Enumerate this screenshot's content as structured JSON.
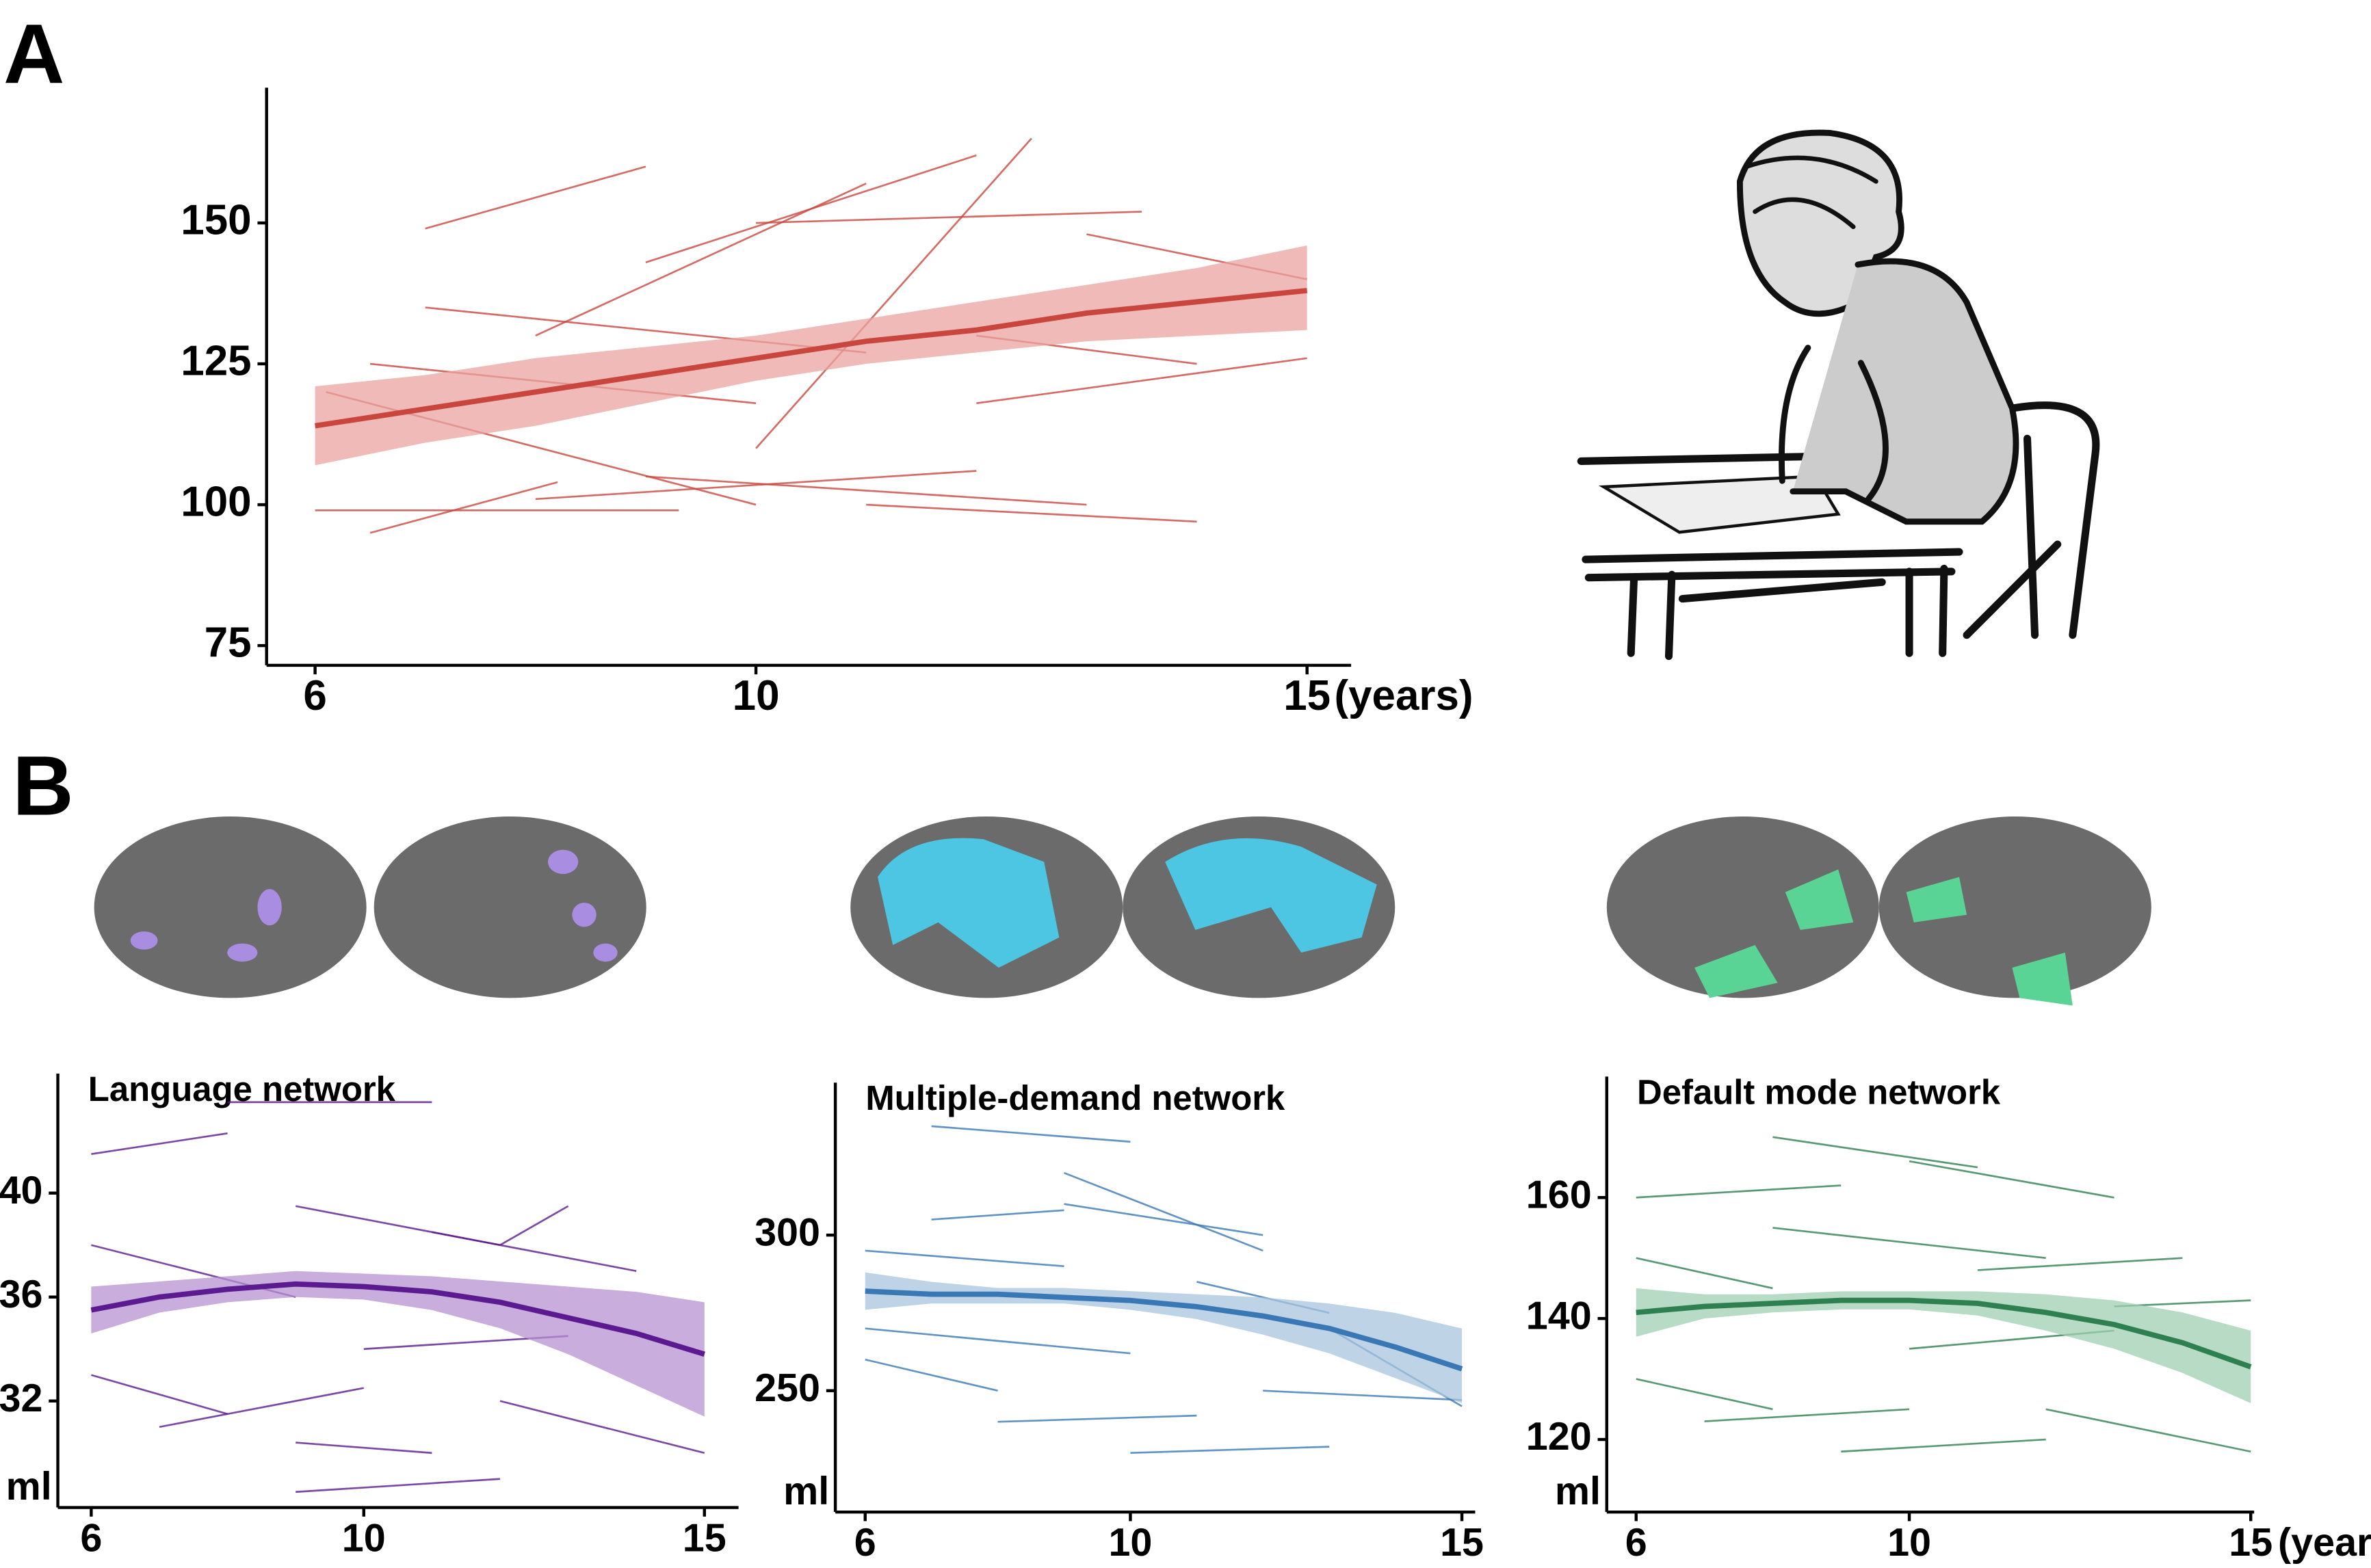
{
  "panels": [
    {
      "label": "A"
    },
    {
      "label": "B"
    }
  ],
  "chart_data": [
    {
      "type": "line",
      "x_label": "(years)",
      "color": "#c9463f",
      "ribbon_color": "#e9a3a0",
      "xlim": [
        5.56,
        15.4
      ],
      "ylim": [
        71.5,
        174
      ],
      "xticks": [
        6,
        10,
        15
      ],
      "yticks": [
        75,
        100,
        125,
        150
      ],
      "fit": {
        "x": [
          6,
          7,
          8,
          9,
          10,
          11,
          12,
          13,
          14,
          15
        ],
        "values": [
          114,
          117,
          120,
          123,
          126,
          129,
          131,
          134,
          136,
          138
        ],
        "lower": [
          107,
          111,
          114,
          118,
          122,
          125,
          127,
          129,
          130,
          131
        ],
        "upper": [
          121,
          123,
          126,
          128,
          130,
          133,
          136,
          139,
          142,
          146
        ]
      },
      "series": [
        {
          "x": [
            6,
            9.3
          ],
          "values": [
            99,
            99
          ]
        },
        {
          "x": [
            6.5,
            8.2
          ],
          "values": [
            95,
            104
          ]
        },
        {
          "x": [
            7,
            9
          ],
          "values": [
            149,
            160
          ]
        },
        {
          "x": [
            6.1,
            10
          ],
          "values": [
            120,
            100
          ]
        },
        {
          "x": [
            8,
            12
          ],
          "values": [
            101,
            106
          ]
        },
        {
          "x": [
            9,
            12
          ],
          "values": [
            143,
            162
          ]
        },
        {
          "x": [
            10,
            13.5
          ],
          "values": [
            150,
            152
          ]
        },
        {
          "x": [
            12,
            15
          ],
          "values": [
            118,
            126
          ]
        },
        {
          "x": [
            11,
            14
          ],
          "values": [
            100,
            97
          ]
        },
        {
          "x": [
            8,
            11
          ],
          "values": [
            130,
            157
          ]
        },
        {
          "x": [
            7,
            11
          ],
          "values": [
            135,
            127
          ]
        },
        {
          "x": [
            12,
            14
          ],
          "values": [
            130,
            125
          ]
        },
        {
          "x": [
            13,
            15
          ],
          "values": [
            148,
            140
          ]
        },
        {
          "x": [
            9,
            13
          ],
          "values": [
            105,
            100
          ]
        },
        {
          "x": [
            10,
            12.5
          ],
          "values": [
            110,
            165
          ]
        },
        {
          "x": [
            6.5,
            10
          ],
          "values": [
            125,
            118
          ]
        }
      ]
    },
    {
      "type": "line",
      "title": "Language network",
      "y_label": "ml",
      "color": "#5b1a8f",
      "ribbon_color": "#b592d2",
      "xlim": [
        5.51,
        15.5
      ],
      "ylim": [
        27.9,
        44.6
      ],
      "xticks": [
        6,
        10,
        15
      ],
      "yticks": [
        32,
        36,
        40
      ],
      "fit": {
        "x": [
          6,
          7,
          8,
          9,
          10,
          11,
          12,
          13,
          14,
          15
        ],
        "values": [
          35.5,
          36,
          36.3,
          36.5,
          36.4,
          36.2,
          35.8,
          35.2,
          34.6,
          33.8
        ],
        "lower": [
          34.6,
          35.4,
          35.8,
          36,
          35.9,
          35.5,
          34.8,
          33.8,
          32.6,
          31.4
        ],
        "upper": [
          36.4,
          36.6,
          36.8,
          37,
          36.9,
          36.8,
          36.6,
          36.4,
          36.2,
          35.8
        ]
      },
      "series": [
        {
          "x": [
            6,
            8
          ],
          "values": [
            41.5,
            42.3
          ]
        },
        {
          "x": [
            8,
            11
          ],
          "values": [
            43.5,
            43.5
          ]
        },
        {
          "x": [
            9,
            12
          ],
          "values": [
            39.5,
            38
          ]
        },
        {
          "x": [
            6,
            9
          ],
          "values": [
            38,
            36
          ]
        },
        {
          "x": [
            7,
            10
          ],
          "values": [
            31,
            32.5
          ]
        },
        {
          "x": [
            9,
            11
          ],
          "values": [
            30.4,
            30
          ]
        },
        {
          "x": [
            12,
            15
          ],
          "values": [
            32,
            30
          ]
        },
        {
          "x": [
            10,
            13
          ],
          "values": [
            34,
            34.5
          ]
        },
        {
          "x": [
            11,
            14
          ],
          "values": [
            38.5,
            37
          ]
        },
        {
          "x": [
            6,
            8
          ],
          "values": [
            33,
            31.5
          ]
        },
        {
          "x": [
            12,
            13
          ],
          "values": [
            38,
            39.5
          ]
        },
        {
          "x": [
            9,
            12
          ],
          "values": [
            28.5,
            29
          ]
        }
      ]
    },
    {
      "type": "line",
      "title": "Multiple-demand network",
      "y_label": "ml",
      "color": "#3a78b5",
      "ribbon_color": "#a8c4de",
      "xlim": [
        5.55,
        15.2
      ],
      "ylim": [
        211,
        349
      ],
      "xticks": [
        6,
        10,
        15
      ],
      "yticks": [
        250,
        300
      ],
      "fit": {
        "x": [
          6,
          7,
          8,
          9,
          10,
          11,
          12,
          13,
          14,
          15
        ],
        "values": [
          282,
          281,
          281,
          280,
          279,
          277,
          274,
          270,
          264,
          257
        ],
        "lower": [
          276,
          278,
          278,
          278,
          276,
          273,
          268,
          262,
          254,
          246
        ],
        "upper": [
          288,
          285,
          283,
          283,
          282,
          281,
          280,
          278,
          275,
          270
        ]
      },
      "series": [
        {
          "x": [
            6,
            9
          ],
          "values": [
            295,
            290
          ]
        },
        {
          "x": [
            7,
            10
          ],
          "values": [
            335,
            330
          ]
        },
        {
          "x": [
            9,
            12
          ],
          "values": [
            320,
            295
          ]
        },
        {
          "x": [
            6,
            10
          ],
          "values": [
            270,
            262
          ]
        },
        {
          "x": [
            8,
            11
          ],
          "values": [
            240,
            242
          ]
        },
        {
          "x": [
            10,
            13
          ],
          "values": [
            230,
            232
          ]
        },
        {
          "x": [
            12,
            15
          ],
          "values": [
            250,
            247
          ]
        },
        {
          "x": [
            7,
            9
          ],
          "values": [
            305,
            308
          ]
        },
        {
          "x": [
            11,
            13
          ],
          "values": [
            285,
            275
          ]
        },
        {
          "x": [
            13,
            15
          ],
          "values": [
            270,
            245
          ]
        },
        {
          "x": [
            6,
            8
          ],
          "values": [
            260,
            250
          ]
        },
        {
          "x": [
            9,
            12
          ],
          "values": [
            310,
            300
          ]
        }
      ]
    },
    {
      "type": "line",
      "title": "Default mode network",
      "y_label": "ml",
      "x_label": "(years)",
      "color": "#2e8050",
      "ribbon_color": "#9fcfb0",
      "xlim": [
        5.57,
        15.05
      ],
      "ylim": [
        108,
        180
      ],
      "xticks": [
        6,
        10,
        15
      ],
      "yticks": [
        120,
        140,
        160
      ],
      "fit": {
        "x": [
          6,
          7,
          8,
          9,
          10,
          11,
          12,
          13,
          14,
          15
        ],
        "values": [
          141,
          142,
          142.5,
          143,
          143,
          142.5,
          141,
          139,
          136,
          132
        ],
        "lower": [
          137,
          140,
          141,
          141.5,
          141.5,
          140.5,
          138,
          135,
          131,
          126
        ],
        "upper": [
          145,
          144,
          144,
          144.5,
          144.5,
          144.5,
          144,
          143,
          141,
          138
        ]
      },
      "series": [
        {
          "x": [
            6,
            9
          ],
          "values": [
            160,
            162
          ]
        },
        {
          "x": [
            8,
            11
          ],
          "values": [
            170,
            165
          ]
        },
        {
          "x": [
            10,
            13
          ],
          "values": [
            166,
            160
          ]
        },
        {
          "x": [
            6,
            8
          ],
          "values": [
            150,
            145
          ]
        },
        {
          "x": [
            7,
            10
          ],
          "values": [
            123,
            125
          ]
        },
        {
          "x": [
            9,
            12
          ],
          "values": [
            118,
            120
          ]
        },
        {
          "x": [
            12,
            15
          ],
          "values": [
            125,
            118
          ]
        },
        {
          "x": [
            8,
            12
          ],
          "values": [
            155,
            150
          ]
        },
        {
          "x": [
            11,
            14
          ],
          "values": [
            148,
            150
          ]
        },
        {
          "x": [
            13,
            15
          ],
          "values": [
            142,
            143
          ]
        },
        {
          "x": [
            6,
            8
          ],
          "values": [
            130,
            125
          ]
        },
        {
          "x": [
            10,
            13
          ],
          "values": [
            135,
            138
          ]
        }
      ]
    }
  ]
}
